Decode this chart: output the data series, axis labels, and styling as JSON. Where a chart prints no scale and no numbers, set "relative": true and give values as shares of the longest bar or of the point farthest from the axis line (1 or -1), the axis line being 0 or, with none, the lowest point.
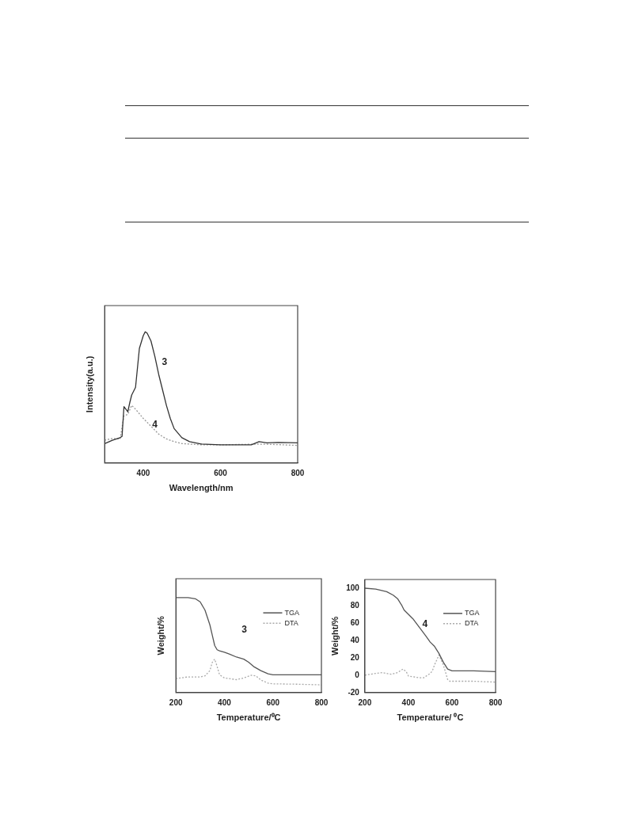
{
  "chart_data": [
    {
      "type": "line",
      "xlabel": "Wavelength/nm",
      "ylabel": "Intensity(a.u.)",
      "relative": true,
      "tick_labels": "x",
      "xlim": [
        300,
        800
      ],
      "xticks": [
        400,
        600,
        800
      ],
      "grid": false,
      "legend": false,
      "marker": "none",
      "series": [
        {
          "color": "#333333",
          "line_style": "solid",
          "x": [
            300,
            320,
            340,
            345,
            350,
            355,
            360,
            365,
            370,
            380,
            390,
            400,
            405,
            410,
            420,
            430,
            440,
            450,
            460,
            470,
            480,
            500,
            520,
            550,
            600,
            680,
            700,
            720,
            750,
            800
          ],
          "values": [
            0.148,
            0.173,
            0.193,
            0.203,
            0.429,
            0.41,
            0.39,
            0.459,
            0.518,
            0.577,
            0.874,
            0.971,
            1,
            0.99,
            0.93,
            0.813,
            0.675,
            0.557,
            0.439,
            0.34,
            0.262,
            0.193,
            0.163,
            0.144,
            0.138,
            0.138,
            0.163,
            0.154,
            0.157,
            0.154
          ]
        },
        {
          "color": "#999999",
          "line_style": "dotted",
          "x": [
            300,
            320,
            340,
            350,
            360,
            370,
            380,
            400,
            420,
            440,
            460,
            480,
            500,
            550,
            600,
            700,
            750,
            800
          ],
          "values": [
            0.173,
            0.187,
            0.183,
            0.36,
            0.37,
            0.439,
            0.41,
            0.34,
            0.28,
            0.22,
            0.183,
            0.163,
            0.148,
            0.138,
            0.138,
            0.144,
            0.14,
            0.134
          ]
        }
      ],
      "annotations": [
        "3",
        "4"
      ]
    },
    {
      "type": "line",
      "xlabel": "Temperature/⁰C",
      "ylabel": "Weight/%",
      "relative": true,
      "tick_labels": "x",
      "xlim": [
        200,
        800
      ],
      "xticks": [
        200,
        400,
        600,
        800
      ],
      "grid": false,
      "legend": "top right",
      "marker": "none",
      "series": [
        {
          "name": "TGA",
          "color": "#555555",
          "line_style": "solid",
          "x": [
            200,
            250,
            280,
            300,
            320,
            340,
            350,
            360,
            370,
            380,
            400,
            420,
            450,
            480,
            500,
            520,
            550,
            580,
            600,
            700,
            800
          ],
          "values": [
            1,
            1,
            0.989,
            0.956,
            0.868,
            0.714,
            0.604,
            0.495,
            0.451,
            0.44,
            0.424,
            0.407,
            0.374,
            0.352,
            0.319,
            0.275,
            0.231,
            0.198,
            0.187,
            0.187,
            0.187
          ]
        },
        {
          "name": "DTA",
          "color": "#aaaaaa",
          "line_style": "dotted",
          "x": [
            200,
            250,
            300,
            320,
            340,
            350,
            360,
            370,
            380,
            400,
            450,
            480,
            510,
            530,
            550,
            580,
            600,
            700,
            800
          ],
          "values": [
            0.147,
            0.165,
            0.165,
            0.176,
            0.231,
            0.319,
            0.352,
            0.275,
            0.187,
            0.154,
            0.136,
            0.154,
            0.182,
            0.176,
            0.132,
            0.099,
            0.092,
            0.088,
            0.081
          ]
        }
      ],
      "annotations": [
        "3"
      ]
    },
    {
      "type": "line",
      "xlabel": "Temperature/ ⁰C",
      "ylabel": "Weight/%",
      "xlim": [
        200,
        800
      ],
      "xticks": [
        200,
        400,
        600,
        800
      ],
      "ylim": [
        -20,
        110
      ],
      "yticks": [
        -20,
        0,
        20,
        40,
        60,
        80,
        100
      ],
      "grid": false,
      "legend": "top right",
      "marker": "none",
      "series": [
        {
          "name": "TGA",
          "color": "#555555",
          "line_style": "solid",
          "x": [
            200,
            250,
            300,
            330,
            350,
            370,
            380,
            400,
            420,
            450,
            480,
            500,
            520,
            540,
            560,
            580,
            600,
            700,
            800
          ],
          "values": [
            100,
            99,
            96,
            92,
            88,
            80,
            75,
            70,
            65,
            55,
            45,
            38,
            33,
            25,
            15,
            7,
            5,
            5,
            4
          ]
        },
        {
          "name": "DTA",
          "color": "#aaaaaa",
          "line_style": "dotted",
          "x": [
            200,
            250,
            280,
            300,
            320,
            350,
            375,
            390,
            400,
            450,
            470,
            500,
            510,
            520,
            540,
            560,
            580,
            590,
            600,
            700,
            800
          ],
          "values": [
            0,
            2,
            3,
            2,
            1,
            3,
            7,
            4,
            -1,
            -3,
            -3,
            2,
            5,
            12,
            23,
            12,
            -5,
            -7,
            -7,
            -7,
            -8
          ]
        }
      ],
      "annotations": [
        "4"
      ]
    }
  ]
}
